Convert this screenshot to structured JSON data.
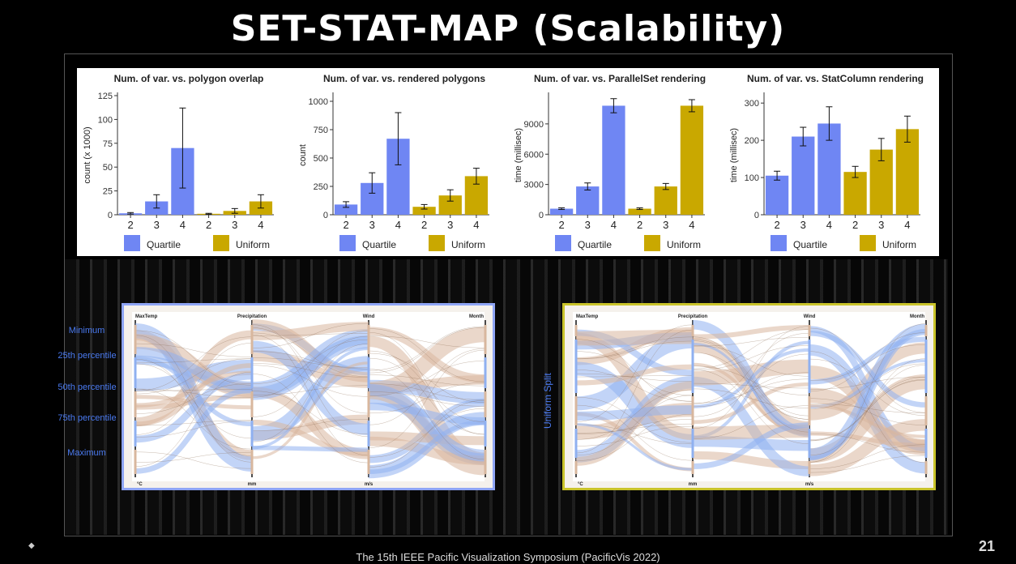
{
  "slide": {
    "title": "SET-STAT-MAP (Scalability)",
    "footer": "The 15th IEEE Pacific Visualization Symposium (PacificVis 2022)",
    "page_number": "21",
    "uniform_split_label": "Uniform Split"
  },
  "percentile_labels": [
    "Minimum",
    "25th percentile",
    "50th percentile",
    "75th percentile",
    "Maximum"
  ],
  "parallel_sets": {
    "axes": [
      "MaxTemp",
      "Precipitation",
      "Wind",
      "Month"
    ],
    "units": [
      "°C",
      "mm",
      "m/s"
    ],
    "left_border_color": "#8fa5f5",
    "right_border_color": "#c9c32a",
    "band_color_a": "#d8b79e",
    "band_color_b": "#8fb0f0"
  },
  "legend": {
    "quartile": "Quartile",
    "uniform": "Uniform"
  },
  "colors": {
    "quartile": "#6f86f3",
    "uniform": "#c9a800"
  },
  "chart_data": [
    {
      "type": "bar",
      "title": "Num. of var. vs. polygon overlap",
      "ylabel": "count (x 1000)",
      "categories": [
        "2",
        "3",
        "4",
        "2",
        "3",
        "4"
      ],
      "groups": [
        "Quartile",
        "Quartile",
        "Quartile",
        "Uniform",
        "Uniform",
        "Uniform"
      ],
      "values": [
        1.5,
        14,
        70,
        1,
        4,
        14
      ],
      "err": [
        0.8,
        7,
        42,
        0.5,
        2.5,
        7
      ],
      "yticks": [
        0,
        25,
        50,
        75,
        100,
        125
      ],
      "ylim": [
        0,
        125
      ]
    },
    {
      "type": "bar",
      "title": "Num. of var. vs. rendered polygons",
      "ylabel": "count",
      "categories": [
        "2",
        "3",
        "4",
        "2",
        "3",
        "4"
      ],
      "groups": [
        "Quartile",
        "Quartile",
        "Quartile",
        "Uniform",
        "Uniform",
        "Uniform"
      ],
      "values": [
        90,
        280,
        670,
        70,
        170,
        340
      ],
      "err": [
        25,
        90,
        230,
        20,
        50,
        70
      ],
      "yticks": [
        0,
        250,
        500,
        750,
        1000
      ],
      "yticklabels": [
        "0",
        "250",
        "500",
        "750",
        "1000"
      ],
      "ylim": [
        0,
        1050
      ]
    },
    {
      "type": "bar",
      "title": "Num. of var. vs. ParallelSet rendering",
      "ylabel": "time (millisec)",
      "categories": [
        "2",
        "3",
        "4",
        "2",
        "3",
        "4"
      ],
      "groups": [
        "Quartile",
        "Quartile",
        "Quartile",
        "Uniform",
        "Uniform",
        "Uniform"
      ],
      "values": [
        600,
        2800,
        10800,
        600,
        2800,
        10800
      ],
      "err": [
        80,
        350,
        700,
        80,
        300,
        600
      ],
      "yticks": [
        0,
        3000,
        6000,
        9000
      ],
      "ylim": [
        0,
        11800
      ]
    },
    {
      "type": "bar",
      "title": "Num. of var. vs. StatColumn rendering",
      "ylabel": "time (millisec)",
      "categories": [
        "2",
        "3",
        "4",
        "2",
        "3",
        "4"
      ],
      "groups": [
        "Quartile",
        "Quartile",
        "Quartile",
        "Uniform",
        "Uniform",
        "Uniform"
      ],
      "values": [
        105,
        210,
        245,
        115,
        175,
        230
      ],
      "err": [
        12,
        25,
        45,
        15,
        30,
        35
      ],
      "yticks": [
        0,
        100,
        200,
        300
      ],
      "ylim": [
        0,
        320
      ]
    }
  ]
}
